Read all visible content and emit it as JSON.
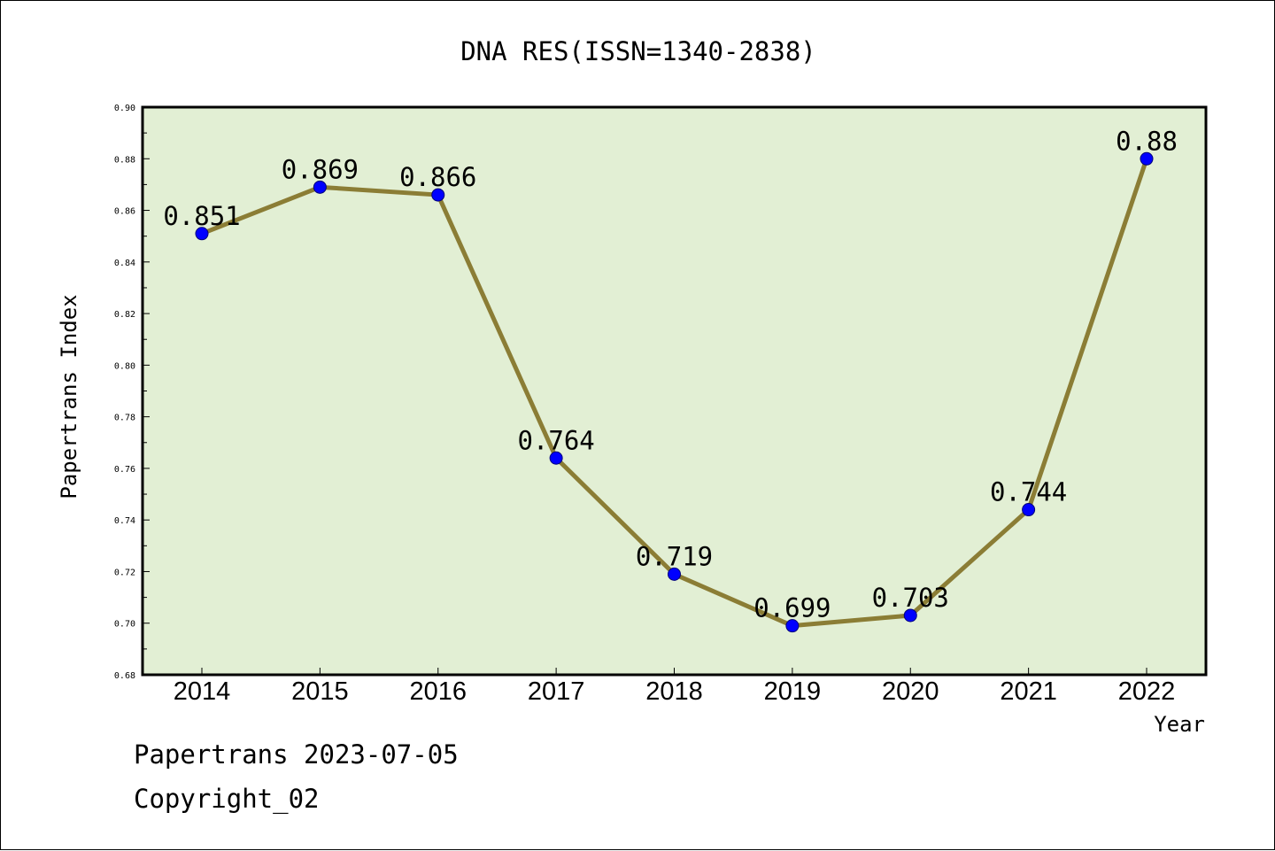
{
  "chart_data": {
    "type": "line",
    "title": "DNA RES(ISSN=1340-2838)",
    "xlabel": "Year",
    "ylabel": "Papertrans Index",
    "categories": [
      "2014",
      "2015",
      "2016",
      "2017",
      "2018",
      "2019",
      "2020",
      "2021",
      "2022"
    ],
    "series": [
      {
        "values": [
          0.851,
          0.869,
          0.866,
          0.764,
          0.719,
          0.699,
          0.703,
          0.744,
          0.88
        ]
      }
    ],
    "data_labels": [
      "0.851",
      "0.869",
      "0.866",
      "0.764",
      "0.719",
      "0.699",
      "0.703",
      "0.744",
      "0.88"
    ],
    "ylim": [
      0.68,
      0.9
    ],
    "yticks": [
      "0.68",
      "0.70",
      "0.72",
      "0.74",
      "0.76",
      "0.78",
      "0.80",
      "0.82",
      "0.84",
      "0.86",
      "0.88",
      "0.90"
    ],
    "grid": false,
    "legend": "none",
    "colors": {
      "plot_background": "#e2efd4",
      "line": "#8b7d35",
      "marker": "#0000ff"
    }
  },
  "footer": {
    "date_line": "Papertrans 2023-07-05",
    "copyright": "Copyright_02"
  }
}
